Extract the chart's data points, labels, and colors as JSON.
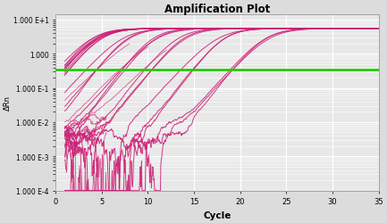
{
  "title": "Amplification Plot",
  "xlabel": "Cycle",
  "ylabel": "ΔRn",
  "xlim": [
    0,
    35
  ],
  "threshold_y": 0.35,
  "threshold_color": "#22cc00",
  "curve_color": "#cc2277",
  "bg_color": "#dcdcdc",
  "plot_bg_color": "#e8e8e8",
  "grid_color": "#ffffff",
  "ytick_vals": [
    0.0001,
    0.001,
    0.01,
    0.1,
    1.0,
    10.0
  ],
  "ytick_labels": [
    "1.000 E-4",
    "1.000 E-3",
    "1.000 E-2",
    "1.000 E-1",
    "1.000",
    "1.000 E+1"
  ],
  "xtick_vals": [
    0,
    5,
    10,
    15,
    20,
    25,
    30,
    35
  ],
  "midpoints": [
    4.5,
    7.5,
    10.5,
    13.5,
    18.0,
    23.0
  ],
  "n_curves": [
    10,
    3,
    3,
    3,
    3,
    3
  ],
  "plateau": 5.5,
  "baseline": 0.0003,
  "slope": 0.75
}
